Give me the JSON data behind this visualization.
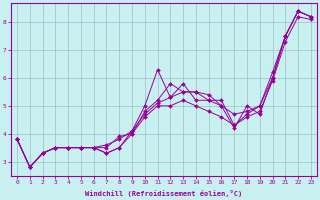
{
  "xlabel": "Windchill (Refroidissement éolien,°C)",
  "ylabel": "",
  "bg_color": "#c8f0f0",
  "grid_color": "#a0c8c8",
  "line_color": "#990099",
  "xlim": [
    -0.5,
    23.5
  ],
  "ylim": [
    2.5,
    8.7
  ],
  "yticks": [
    3,
    4,
    5,
    6,
    7,
    8
  ],
  "xticks": [
    0,
    1,
    2,
    3,
    4,
    5,
    6,
    7,
    8,
    9,
    10,
    11,
    12,
    13,
    14,
    15,
    16,
    17,
    18,
    19,
    20,
    21,
    22,
    23
  ],
  "series": [
    {
      "x": [
        0,
        1,
        2,
        3,
        4,
        5,
        6,
        7,
        8,
        9,
        10,
        11,
        12,
        13,
        14,
        15,
        16,
        17,
        18,
        19,
        20,
        21,
        22,
        23
      ],
      "y": [
        3.8,
        2.8,
        3.3,
        3.5,
        3.5,
        3.5,
        3.5,
        3.3,
        3.5,
        4.1,
        5.0,
        6.3,
        5.3,
        5.8,
        5.2,
        5.2,
        5.2,
        4.3,
        4.7,
        5.0,
        6.0,
        7.5,
        8.4,
        8.2
      ]
    },
    {
      "x": [
        0,
        1,
        2,
        3,
        4,
        5,
        6,
        7,
        8,
        9,
        10,
        11,
        12,
        13,
        14,
        15,
        16,
        17,
        18,
        19,
        20,
        21,
        22,
        23
      ],
      "y": [
        3.8,
        2.8,
        3.3,
        3.5,
        3.5,
        3.5,
        3.5,
        3.3,
        3.5,
        4.0,
        4.8,
        5.2,
        5.8,
        5.5,
        5.5,
        5.2,
        5.0,
        4.2,
        5.0,
        4.7,
        6.0,
        7.5,
        8.4,
        8.2
      ]
    },
    {
      "x": [
        0,
        1,
        2,
        3,
        4,
        5,
        6,
        7,
        8,
        9,
        10,
        11,
        12,
        13,
        14,
        15,
        16,
        17,
        18,
        19,
        20,
        21,
        22,
        23
      ],
      "y": [
        3.8,
        2.8,
        3.3,
        3.5,
        3.5,
        3.5,
        3.5,
        3.6,
        3.8,
        4.1,
        4.7,
        5.1,
        5.3,
        5.5,
        5.5,
        5.4,
        5.0,
        4.7,
        4.8,
        5.0,
        6.2,
        7.5,
        8.4,
        8.2
      ]
    },
    {
      "x": [
        0,
        1,
        2,
        3,
        4,
        5,
        6,
        7,
        8,
        9,
        10,
        11,
        12,
        13,
        14,
        15,
        16,
        17,
        18,
        19,
        20,
        21,
        22,
        23
      ],
      "y": [
        3.8,
        2.8,
        3.3,
        3.5,
        3.5,
        3.5,
        3.5,
        3.5,
        3.9,
        4.0,
        4.6,
        5.0,
        5.0,
        5.2,
        5.0,
        4.8,
        4.6,
        4.3,
        4.6,
        4.8,
        5.9,
        7.3,
        8.2,
        8.1
      ]
    }
  ]
}
